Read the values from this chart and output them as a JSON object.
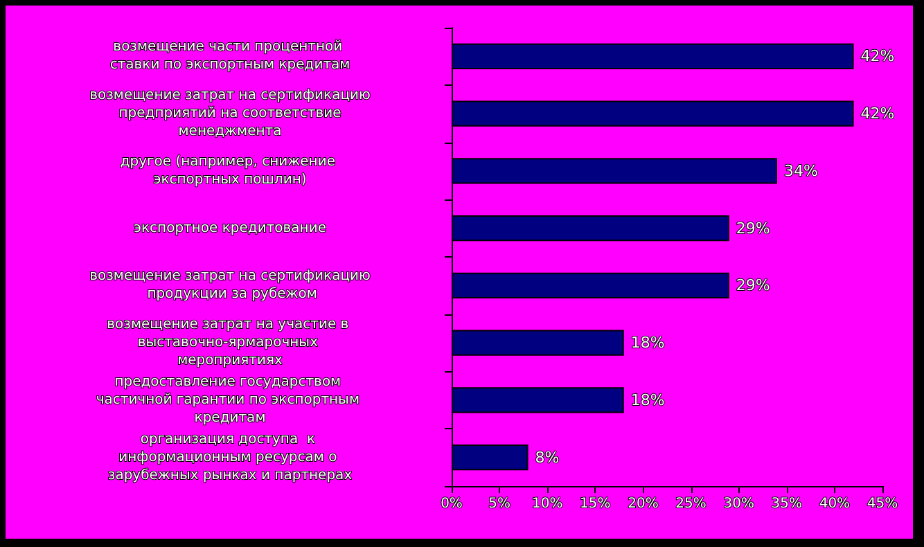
{
  "chart_data": {
    "type": "bar",
    "orientation": "horizontal",
    "categories": [
      "возмещение части процентной ставки по экспортным кредитам",
      "возмещение затрат на сертификацию предприятий на соответствие менеджмента",
      "другое (например, снижение экспортных пошлин)",
      "экспортное кредитование",
      "возмещение затрат на сертификацию продукции за рубежом",
      "возмещение затрат на участие в выставочно-ярмарочных мероприятиях",
      "предоставление государством частичной гарантии по экспортным кредитам",
      "организация доступа  к информационным ресурсам о зарубежных рынках и партнерах"
    ],
    "values": [
      42,
      42,
      34,
      29,
      29,
      18,
      18,
      8
    ],
    "value_labels": [
      "42%",
      "42%",
      "34%",
      "29%",
      "29%",
      "18%",
      "18%",
      "8%"
    ],
    "color": "#000080",
    "xlim": [
      0,
      45
    ],
    "xticks": [
      {
        "value": 0,
        "label": "0%"
      },
      {
        "value": 5,
        "label": "5%"
      },
      {
        "value": 10,
        "label": "10%"
      },
      {
        "value": 15,
        "label": "15%"
      },
      {
        "value": 20,
        "label": "20%"
      },
      {
        "value": 25,
        "label": "25%"
      },
      {
        "value": 30,
        "label": "30%"
      },
      {
        "value": 35,
        "label": "35%"
      },
      {
        "value": 40,
        "label": "40%"
      },
      {
        "value": 45,
        "label": "45%"
      }
    ],
    "grid": false
  }
}
